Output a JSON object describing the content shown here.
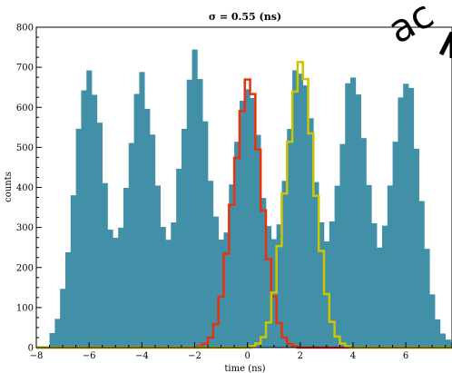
{
  "chart_data": {
    "type": "bar",
    "title": "σ = 0.55 (ns)",
    "xlabel": "time (ns)",
    "ylabel": "counts",
    "xlim": [
      -8,
      7.75
    ],
    "ylim": [
      0,
      800
    ],
    "xticks": [
      -8,
      -6,
      -4,
      -2,
      0,
      2,
      4,
      6
    ],
    "xtick_labels": [
      "−8",
      "−6",
      "−4",
      "−2",
      "0",
      "2",
      "4",
      "6"
    ],
    "yticks": [
      0,
      100,
      200,
      300,
      400,
      500,
      600,
      700,
      800
    ],
    "bin_width": 0.2,
    "bin_start": -7.5,
    "histogram_peaks_ns": [
      -6,
      -4,
      -2,
      0,
      2,
      4,
      6
    ],
    "histogram_peak_counts": [
      680,
      655,
      710,
      645,
      695,
      665,
      655
    ],
    "histogram_sigma_ns": 0.55,
    "histogram_baseline": 10,
    "series": [
      {
        "name": "",
        "kind": "filled-histogram",
        "color": "#4290a8"
      },
      {
        "name": "",
        "kind": "step",
        "color": "#e8320c",
        "peak_ns": 0,
        "peak_count": 648,
        "sigma_ns": 0.55
      },
      {
        "name": "",
        "kind": "step",
        "color": "#cfc400",
        "peak_ns": 2,
        "peak_count": 698,
        "sigma_ns": 0.55
      }
    ]
  },
  "overlay_text": "ac"
}
